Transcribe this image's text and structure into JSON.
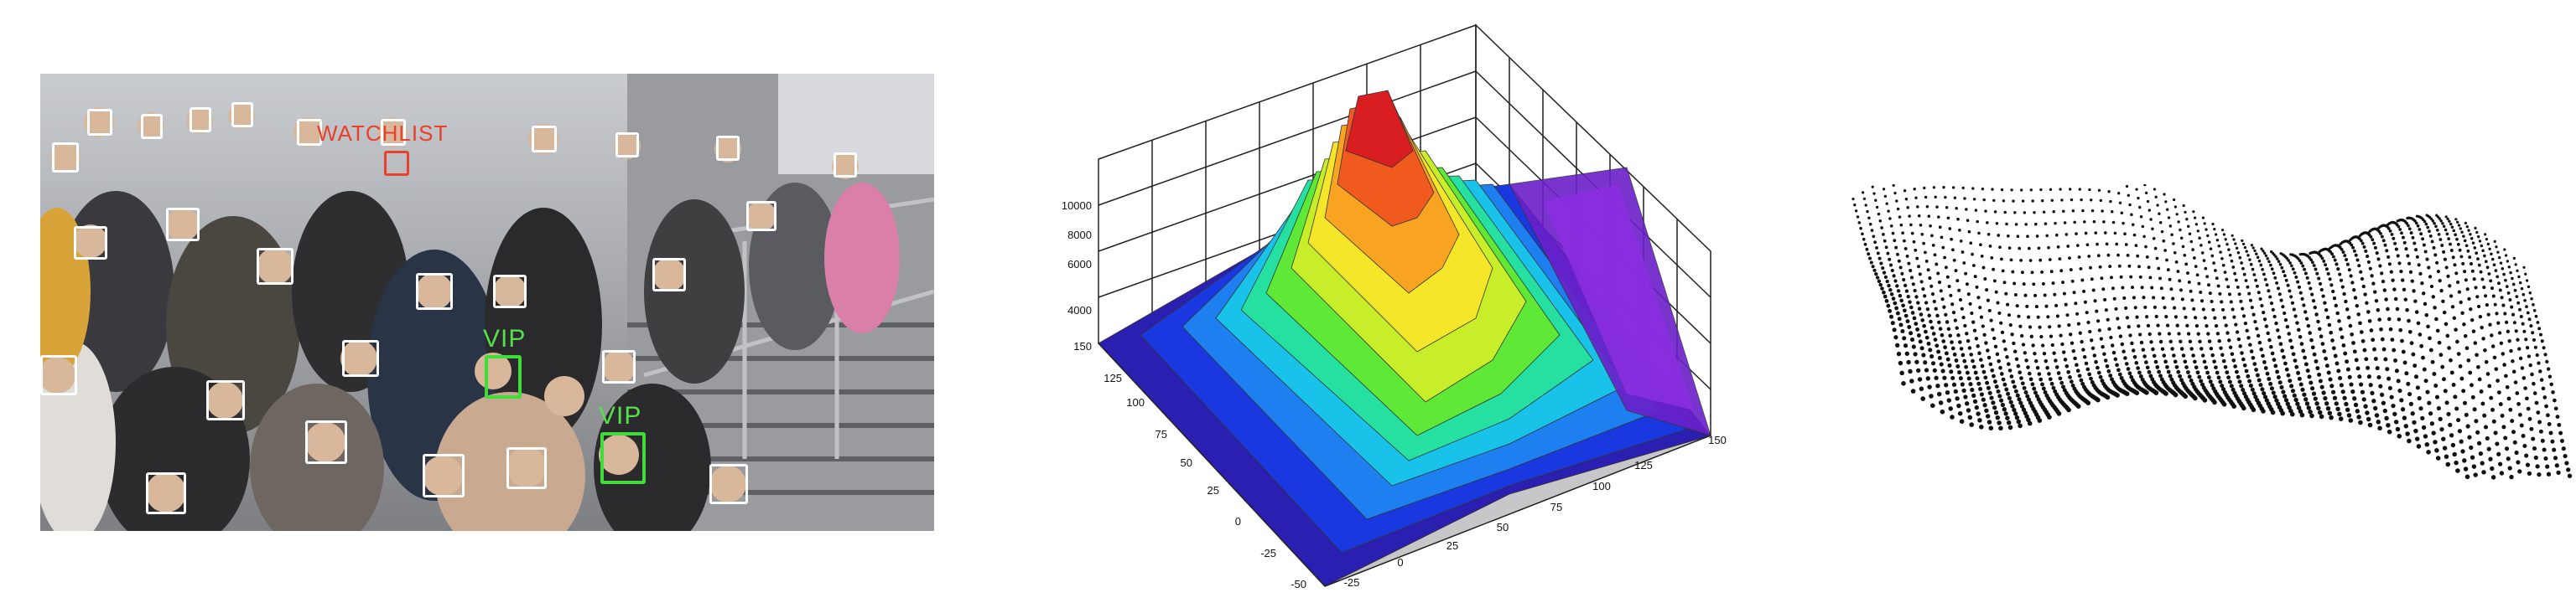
{
  "panel_1": {
    "labels": {
      "watch": "WATCHLIST",
      "vip_1": "VIP",
      "vip_2": "VIP"
    },
    "colors": {
      "vip": "#3fdc3a",
      "watch": "#e8402a",
      "face": "#ffffff"
    }
  },
  "panel_2": {
    "z_ticks": [
      "10000",
      "8000",
      "6000",
      "4000"
    ],
    "y_ticks": [
      "150",
      "125",
      "100",
      "75",
      "50",
      "25",
      "0",
      "-25",
      "-50"
    ],
    "x_ticks": [
      "-25",
      "0",
      "25",
      "50",
      "75",
      "100",
      "125",
      "150"
    ]
  },
  "panel_3": {}
}
